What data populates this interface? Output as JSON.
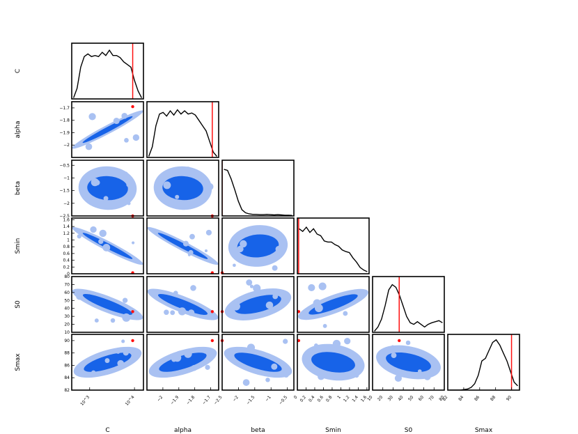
{
  "chart_data": {
    "type": "corner",
    "parameters": [
      "C",
      "alpha",
      "beta",
      "Smin",
      "S0",
      "Smax"
    ],
    "x_axis_labels": [
      "C",
      "alpha",
      "beta",
      "Smin",
      "S0",
      "Smax"
    ],
    "y_axis_labels": [
      "C",
      "alpha",
      "beta",
      "Smin",
      "S0",
      "Smax"
    ],
    "ranges": {
      "C": [
        3.5,
        4.3
      ],
      "alpha": [
        -2.1,
        -1.65
      ],
      "beta": [
        -2.5,
        -0.3
      ],
      "Smin": [
        0.0,
        1.65
      ],
      "S0": [
        10,
        80
      ],
      "Smax": [
        82,
        91
      ]
    },
    "log_axes": [
      "C"
    ],
    "ticks": {
      "C": [
        {
          "v": 3.7,
          "label": "10^3"
        },
        {
          "v": 4.2,
          "label": "10^4"
        }
      ],
      "alpha": [
        -2.0,
        -1.9,
        -1.8,
        -1.7
      ],
      "beta": [
        -2.5,
        -2.0,
        -1.5,
        -1.0,
        -0.5
      ],
      "Smin": [
        0.0,
        0.2,
        0.4,
        0.6,
        0.8,
        1.0,
        1.2,
        1.4,
        1.6
      ],
      "S0": [
        10,
        20,
        30,
        40,
        50,
        60,
        70,
        80
      ],
      "Smax": [
        82,
        84,
        86,
        88,
        90
      ]
    },
    "truth": {
      "C": 4.18,
      "alpha": -1.69,
      "beta": -2.5,
      "Smin": 0.03,
      "S0": 36,
      "Smax": 90
    },
    "marginals": {
      "C": [
        0.02,
        0.2,
        0.6,
        0.8,
        0.85,
        0.8,
        0.82,
        0.8,
        0.88,
        0.82,
        0.92,
        0.82,
        0.82,
        0.78,
        0.7,
        0.65,
        0.6,
        0.35,
        0.15,
        0.02
      ],
      "alpha": [
        0.02,
        0.2,
        0.6,
        0.82,
        0.85,
        0.78,
        0.88,
        0.8,
        0.9,
        0.82,
        0.88,
        0.82,
        0.84,
        0.8,
        0.7,
        0.6,
        0.5,
        0.3,
        0.1,
        0.02
      ],
      "beta": [
        0.88,
        0.86,
        0.7,
        0.5,
        0.28,
        0.12,
        0.06,
        0.04,
        0.03,
        0.03,
        0.025,
        0.025,
        0.03,
        0.025,
        0.02,
        0.025,
        0.02,
        0.015,
        0.015,
        0.01
      ],
      "Smin": [
        0.85,
        0.8,
        0.88,
        0.78,
        0.85,
        0.75,
        0.72,
        0.62,
        0.6,
        0.6,
        0.55,
        0.52,
        0.45,
        0.42,
        0.4,
        0.3,
        0.22,
        0.12,
        0.07,
        0.04
      ],
      "S0": [
        0.02,
        0.1,
        0.25,
        0.5,
        0.8,
        0.9,
        0.85,
        0.7,
        0.5,
        0.3,
        0.18,
        0.15,
        0.2,
        0.15,
        0.1,
        0.15,
        0.18,
        0.2,
        0.22,
        0.18
      ],
      "Smax": [
        0.0,
        0.0,
        0.0,
        0.0,
        0.01,
        0.02,
        0.05,
        0.12,
        0.28,
        0.55,
        0.6,
        0.75,
        0.9,
        0.95,
        0.85,
        0.7,
        0.55,
        0.35,
        0.15,
        0.08
      ]
    },
    "correlations": {
      "alpha|C": 0.99,
      "beta|C": -0.1,
      "beta|alpha": -0.1,
      "Smin|C": -0.97,
      "Smin|alpha": -0.97,
      "Smin|beta": 0.15,
      "S0|C": -0.8,
      "S0|alpha": -0.8,
      "S0|beta": 0.5,
      "S0|Smin": 0.75,
      "Smax|C": 0.6,
      "Smax|alpha": 0.6,
      "Smax|beta": -0.6,
      "Smax|Smin": -0.3,
      "Smax|S0": -0.4
    },
    "colors": {
      "contour_inner": "#1763e8",
      "contour_outer": "#a9c1f2",
      "marginal_line": "#000000",
      "truth": "#ff1010"
    }
  }
}
